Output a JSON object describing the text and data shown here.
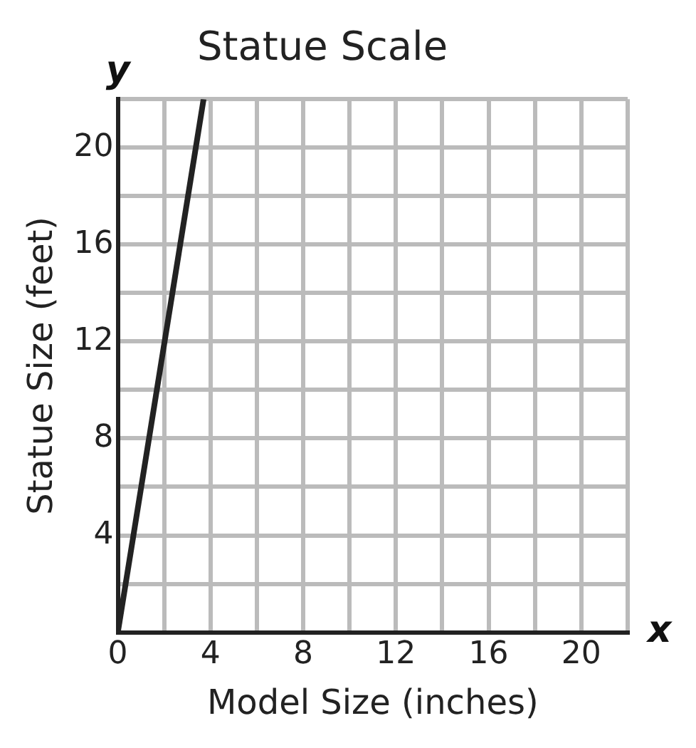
{
  "chart_data": {
    "type": "line",
    "title": "Statue Scale",
    "xlabel": "Model Size (inches)",
    "ylabel": "Statue Size (feet)",
    "annotations": [
      "x",
      "y"
    ],
    "x": [
      0,
      3.7
    ],
    "series": [
      {
        "color": "#222222",
        "values": [
          0,
          22
        ]
      }
    ],
    "xlim": [
      0,
      22
    ],
    "ylim": [
      0,
      22
    ],
    "xticks": [
      0,
      {
        "value": 2,
        "label": null
      },
      4,
      {
        "value": 6,
        "label": null
      },
      8,
      {
        "value": 10,
        "label": null
      },
      12,
      {
        "value": 14,
        "label": null
      },
      16,
      {
        "value": 18,
        "label": null
      },
      20,
      {
        "value": 22,
        "label": null
      }
    ],
    "yticks": [
      {
        "value": 0,
        "label": null
      },
      {
        "value": 2,
        "label": null
      },
      4,
      {
        "value": 6,
        "label": null
      },
      8,
      {
        "value": 10,
        "label": null
      },
      12,
      {
        "value": 14,
        "label": null
      },
      16,
      {
        "value": 18,
        "label": null
      },
      20,
      {
        "value": 22,
        "label": null
      }
    ],
    "grid": true,
    "marker": "none",
    "line_style": "solid",
    "legend": false
  }
}
